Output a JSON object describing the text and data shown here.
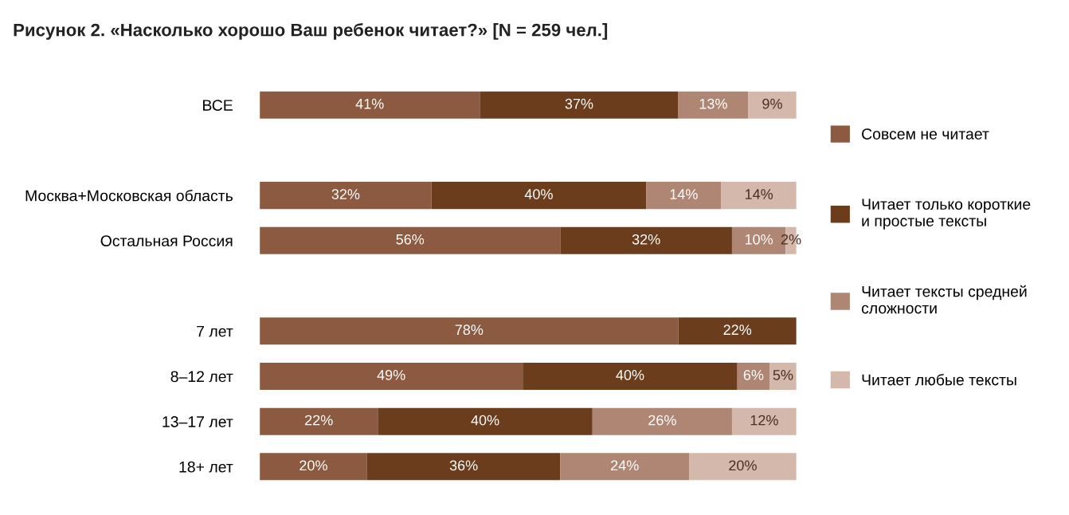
{
  "chart_data": {
    "type": "bar",
    "orientation": "horizontal",
    "stacked": true,
    "title": "Рисунок 2. «Насколько хорошо Ваш ребенок читает?» [N = 259 чел.]",
    "categories": [
      "ВСЕ",
      null,
      "Москва+Московская область",
      "Остальная Россия",
      null,
      "7 лет",
      "8–12 лет",
      "13–17 лет",
      "18+ лет"
    ],
    "series": [
      {
        "name": "Совсем не читает",
        "color": "#8b5a40",
        "values": [
          41,
          null,
          32,
          56,
          null,
          78,
          49,
          22,
          20
        ],
        "value_labels": [
          "41%",
          null,
          "32%",
          "56%",
          null,
          "78%",
          "49%",
          "22%",
          "20%"
        ]
      },
      {
        "name": "Читает только короткие\nи простые тексты",
        "color": "#6b3d1c",
        "values": [
          37,
          null,
          40,
          32,
          null,
          22,
          40,
          40,
          36
        ],
        "value_labels": [
          "37%",
          null,
          "40%",
          "32%",
          null,
          "22%",
          "40%",
          "40%",
          "36%"
        ]
      },
      {
        "name": "Читает тексты средней\nсложности",
        "color": "#ae8673",
        "values": [
          13,
          null,
          14,
          10,
          null,
          null,
          6,
          26,
          24
        ],
        "value_labels": [
          "13%",
          null,
          "14%",
          "10%",
          null,
          null,
          "6%",
          "26%",
          "24%"
        ]
      },
      {
        "name": "Читает любые тексты",
        "color": "#d4b8ab",
        "values": [
          9,
          null,
          14,
          2,
          null,
          null,
          5,
          12,
          20
        ],
        "value_labels": [
          "9%",
          null,
          "14%",
          "2%",
          null,
          null,
          "5%",
          "12%",
          "20%"
        ]
      }
    ],
    "tick_labels": "y",
    "legend": "right"
  }
}
